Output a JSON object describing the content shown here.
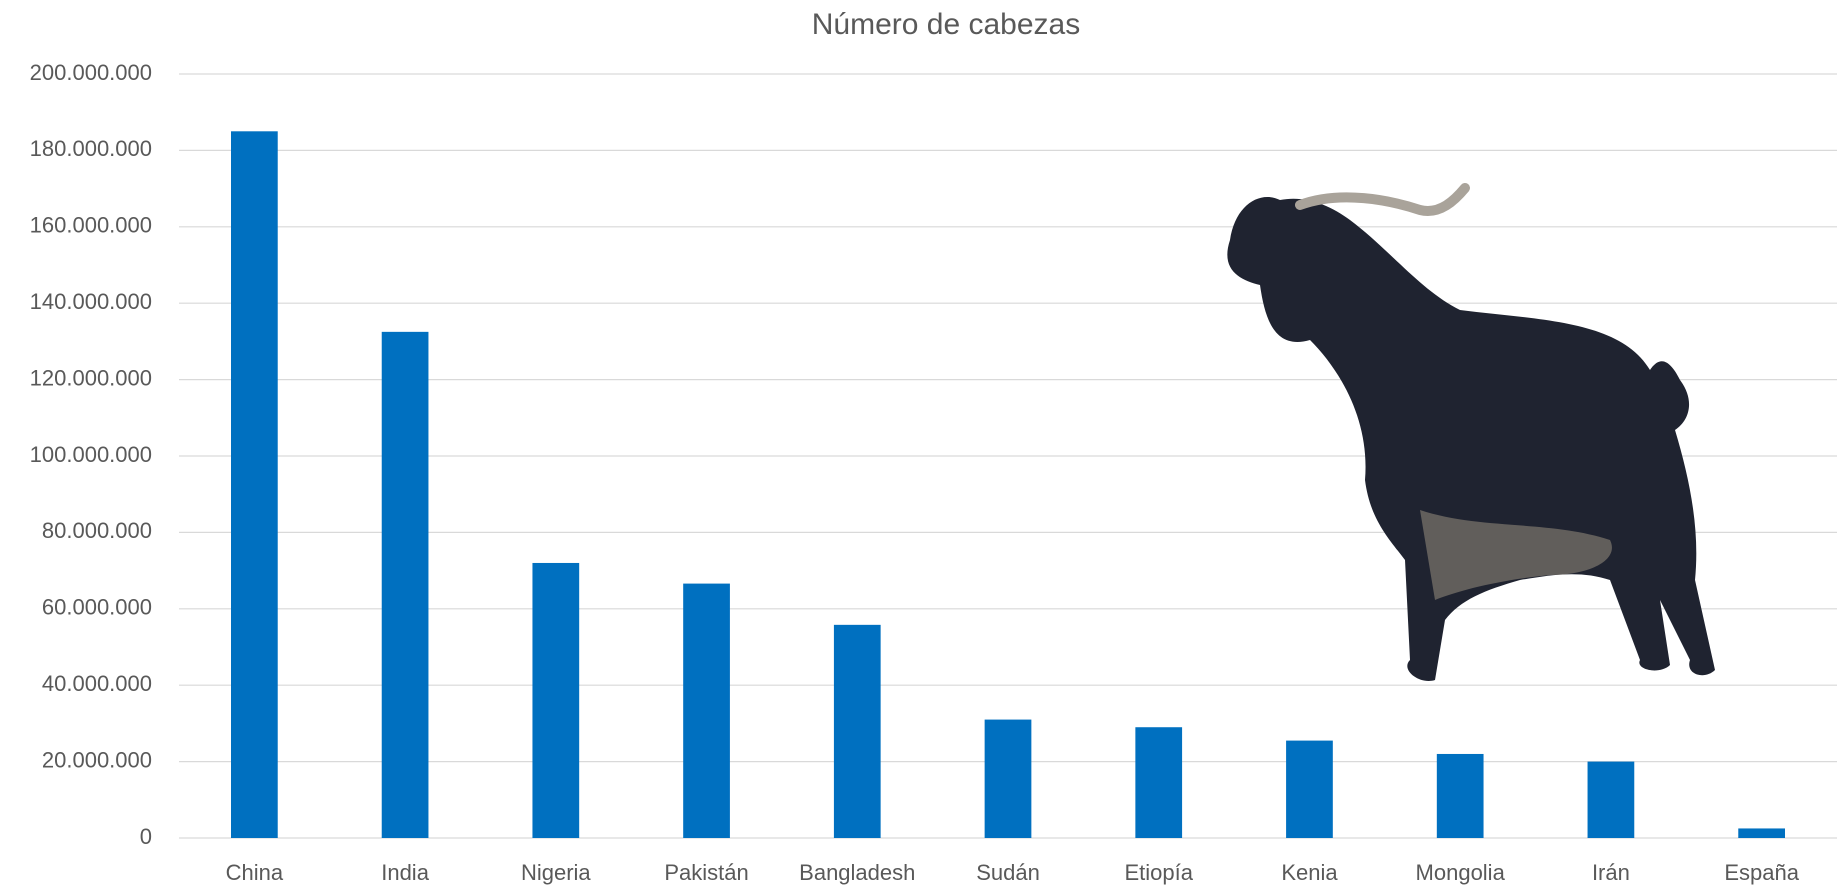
{
  "chart_data": {
    "type": "bar",
    "title": "Número de cabezas",
    "categories": [
      "China",
      "India",
      "Nigeria",
      "Pakistán",
      "Bangladesh",
      "Sudán",
      "Etiopía",
      "Kenia",
      "Mongolia",
      "Irán",
      "España"
    ],
    "values": [
      185000000,
      132500000,
      72000000,
      66600000,
      55800000,
      31000000,
      29000000,
      25500000,
      22000000,
      20000000,
      2500000
    ],
    "color": "#0070c0",
    "ylim": [
      0,
      200000000
    ],
    "yticks": [
      0,
      {
        "value": 20000000,
        "label": "20.000.000"
      },
      {
        "value": 40000000,
        "label": "40.000.000"
      },
      {
        "value": 60000000,
        "label": "60.000.000"
      },
      {
        "value": 80000000,
        "label": "80.000.000"
      },
      {
        "value": 100000000,
        "label": "100.000.000"
      },
      {
        "value": 120000000,
        "label": "120.000.000"
      },
      {
        "value": 140000000,
        "label": "140.000.000"
      },
      {
        "value": 160000000,
        "label": "160.000.000"
      },
      {
        "value": 180000000,
        "label": "180.000.000"
      },
      {
        "value": 200000000,
        "label": "200.000.000"
      }
    ],
    "grid": true
  }
}
